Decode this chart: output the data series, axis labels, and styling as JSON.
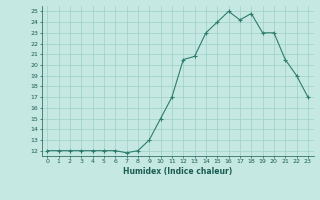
{
  "xlabel": "Humidex (Indice chaleur)",
  "x_values": [
    0,
    1,
    2,
    3,
    4,
    5,
    6,
    7,
    8,
    9,
    10,
    11,
    12,
    13,
    14,
    15,
    16,
    17,
    18,
    19,
    20,
    21,
    22,
    23
  ],
  "y_values": [
    12,
    12,
    12,
    12,
    12,
    12,
    12,
    11.8,
    12,
    13,
    15,
    17,
    20.5,
    20.8,
    23.0,
    24.0,
    25.0,
    24.2,
    24.8,
    23.0,
    23.0,
    20.5,
    19.0,
    17.0
  ],
  "xlim": [
    -0.5,
    23.5
  ],
  "ylim": [
    11.5,
    25.5
  ],
  "yticks": [
    12,
    13,
    14,
    15,
    16,
    17,
    18,
    19,
    20,
    21,
    22,
    23,
    24,
    25
  ],
  "xticks": [
    0,
    1,
    2,
    3,
    4,
    5,
    6,
    7,
    8,
    9,
    10,
    11,
    12,
    13,
    14,
    15,
    16,
    17,
    18,
    19,
    20,
    21,
    22,
    23
  ],
  "line_color": "#2e7d6e",
  "marker_color": "#2e7d6e",
  "bg_color": "#c5e8e2",
  "grid_color": "#9dcfc7",
  "axis_label_color": "#1a5c52",
  "tick_color": "#1a5c52"
}
